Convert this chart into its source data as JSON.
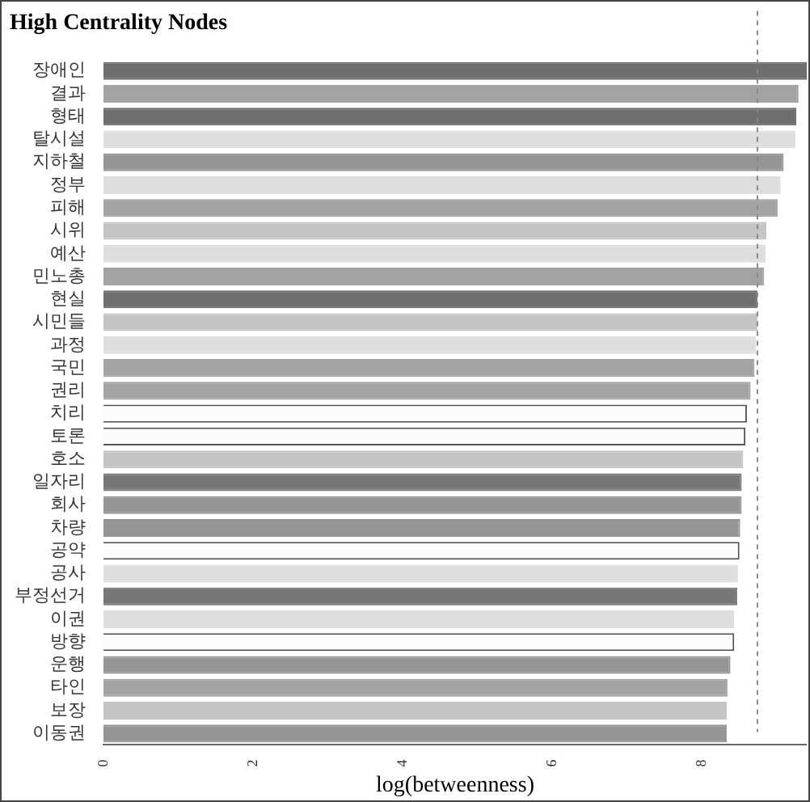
{
  "chart_data": {
    "type": "bar",
    "orientation": "horizontal",
    "title": "High Centrality Nodes",
    "xlabel": "log(betweenness)",
    "categories": [
      "장애인",
      "결과",
      "형태",
      "탈시설",
      "지하철",
      "정부",
      "피해",
      "시위",
      "예산",
      "민노총",
      "현실",
      "시민들",
      "과정",
      "국민",
      "권리",
      "치리",
      "토론",
      "호소",
      "일자리",
      "회사",
      "차량",
      "공약",
      "공사",
      "부정선거",
      "이권",
      "방향",
      "운행",
      "타인",
      "보장",
      "이동권"
    ],
    "values": [
      9.4,
      9.29,
      9.26,
      9.25,
      9.09,
      9.05,
      9.01,
      8.86,
      8.85,
      8.83,
      8.74,
      8.74,
      8.72,
      8.7,
      8.65,
      8.6,
      8.58,
      8.55,
      8.53,
      8.53,
      8.51,
      8.5,
      8.48,
      8.47,
      8.43,
      8.43,
      8.38,
      8.34,
      8.33,
      8.33
    ],
    "colors": [
      "#6e6e6e",
      "#a3a3a3",
      "#6e6e6e",
      "#dedede",
      "#959595",
      "#dedede",
      "#a3a3a3",
      "#c4c4c4",
      "#dedede",
      "#a3a3a3",
      "#6e6e6e",
      "#c4c4c4",
      "#dedede",
      "#a3a3a3",
      "#a3a3a3",
      "#fcfcfc",
      "#fcfcfc",
      "#c4c4c4",
      "#777777",
      "#959595",
      "#959595",
      "#fcfcfc",
      "#dedede",
      "#777777",
      "#dedede",
      "#fcfcfc",
      "#959595",
      "#a3a3a3",
      "#c4c4c4",
      "#959595"
    ],
    "xlim": [
      0,
      9.4
    ],
    "xticks": [
      0,
      2,
      4,
      6,
      8
    ],
    "ref_lines": [
      {
        "axis": "x",
        "value": 8.74,
        "color": "#888888",
        "line_style": "dashed"
      }
    ],
    "grid": false,
    "legend": false
  }
}
